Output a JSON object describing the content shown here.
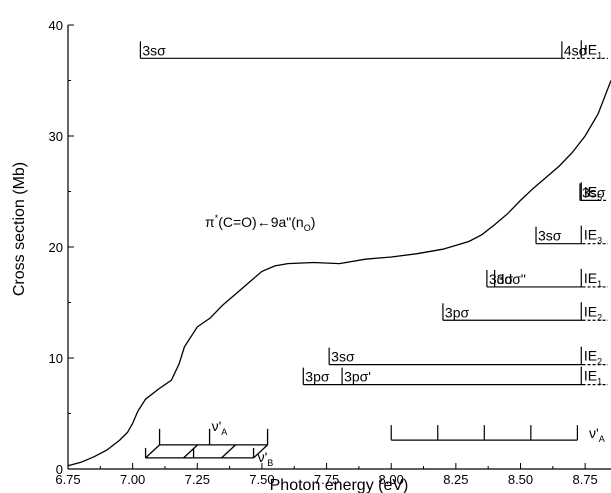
{
  "chart_data": {
    "type": "line",
    "xlabel": "Photon energy (eV)",
    "ylabel": "Cross section (Mb)",
    "xlim": [
      6.75,
      8.85
    ],
    "ylim": [
      0,
      40
    ],
    "xticks": [
      "6.75",
      "7.00",
      "7.25",
      "7.50",
      "7.75",
      "8.00",
      "8.25",
      "8.50",
      "8.75"
    ],
    "yticks": [
      "0",
      "10",
      "20",
      "30",
      "40"
    ],
    "grid": false,
    "series": [
      {
        "x": [
          6.75,
          6.8,
          6.85,
          6.9,
          6.95,
          6.98,
          7.0,
          7.02,
          7.05,
          7.1,
          7.15,
          7.18,
          7.2,
          7.25,
          7.3,
          7.35,
          7.4,
          7.45,
          7.5,
          7.55,
          7.6,
          7.7,
          7.8,
          7.9,
          8.0,
          8.1,
          8.2,
          8.3,
          8.35,
          8.4,
          8.45,
          8.5,
          8.55,
          8.6,
          8.65,
          8.7,
          8.75,
          8.8,
          8.85
        ],
        "values": [
          0.3,
          0.6,
          1.1,
          1.7,
          2.6,
          3.3,
          4.1,
          5.2,
          6.3,
          7.2,
          8.0,
          9.5,
          11.0,
          12.8,
          13.6,
          14.8,
          15.8,
          16.8,
          17.8,
          18.3,
          18.5,
          18.6,
          18.5,
          18.9,
          19.1,
          19.4,
          19.8,
          20.5,
          21.1,
          22.0,
          23.0,
          24.2,
          25.3,
          26.3,
          27.3,
          28.5,
          30.0,
          32.0,
          35.0
        ]
      }
    ],
    "annotations": {
      "band_label": {
        "pre": "π",
        "sup": "*",
        "mid": "(C=O)←9a\"(n",
        "sub": "O",
        "post": ")"
      },
      "ladders": [
        {
          "x_start": 7.03,
          "x_end": 8.66,
          "y": 37,
          "labels": [
            {
              "text": "3sσ",
              "x": 7.03
            },
            {
              "text": "4sσ",
              "x": 8.66
            }
          ],
          "limit": "IE",
          "limit_sub": "1"
        },
        {
          "x_start": 8.73,
          "x_end": 8.8,
          "y": 24.2,
          "labels": [
            {
              "text": "3sσ",
              "x": 8.73
            }
          ],
          "limit": "IE",
          "limit_sub": "5"
        },
        {
          "x_start": 8.56,
          "x_end": 8.74,
          "y": 20.3,
          "labels": [
            {
              "text": "3sσ",
              "x": 8.56
            }
          ],
          "limit": "IE",
          "limit_sub": "3"
        },
        {
          "x_start": 8.37,
          "x_end": 8.74,
          "y": 16.4,
          "labels": [
            {
              "text": "3dσ",
              "x": 8.37
            },
            {
              "text": "3dσ\"",
              "x": 8.4
            }
          ],
          "limit": "IE",
          "limit_sub": "1"
        },
        {
          "x_start": 8.2,
          "x_end": 8.74,
          "y": 13.4,
          "labels": [
            {
              "text": "3pσ",
              "x": 8.2
            }
          ],
          "limit": "IE",
          "limit_sub": "2"
        },
        {
          "x_start": 7.76,
          "x_end": 8.74,
          "y": 9.4,
          "labels": [
            {
              "text": "3sσ",
              "x": 7.76
            }
          ],
          "limit": "IE",
          "limit_sub": "2"
        },
        {
          "x_start": 7.66,
          "x_end": 8.74,
          "y": 7.6,
          "labels": [
            {
              "text": "3pσ",
              "x": 7.66
            },
            {
              "text": "3pσ'",
              "x": 7.81
            }
          ],
          "limit": "IE",
          "limit_sub": "1"
        }
      ],
      "progression_A": {
        "label": "ν'",
        "label_sub": "A",
        "ticks": [
          8.0,
          8.18,
          8.36,
          8.54,
          8.72
        ],
        "y": 2.6
      },
      "box_progression": {
        "label_A": "ν'",
        "label_A_sub": "A",
        "label_B": "ν'",
        "label_B_sub": "B"
      }
    }
  }
}
